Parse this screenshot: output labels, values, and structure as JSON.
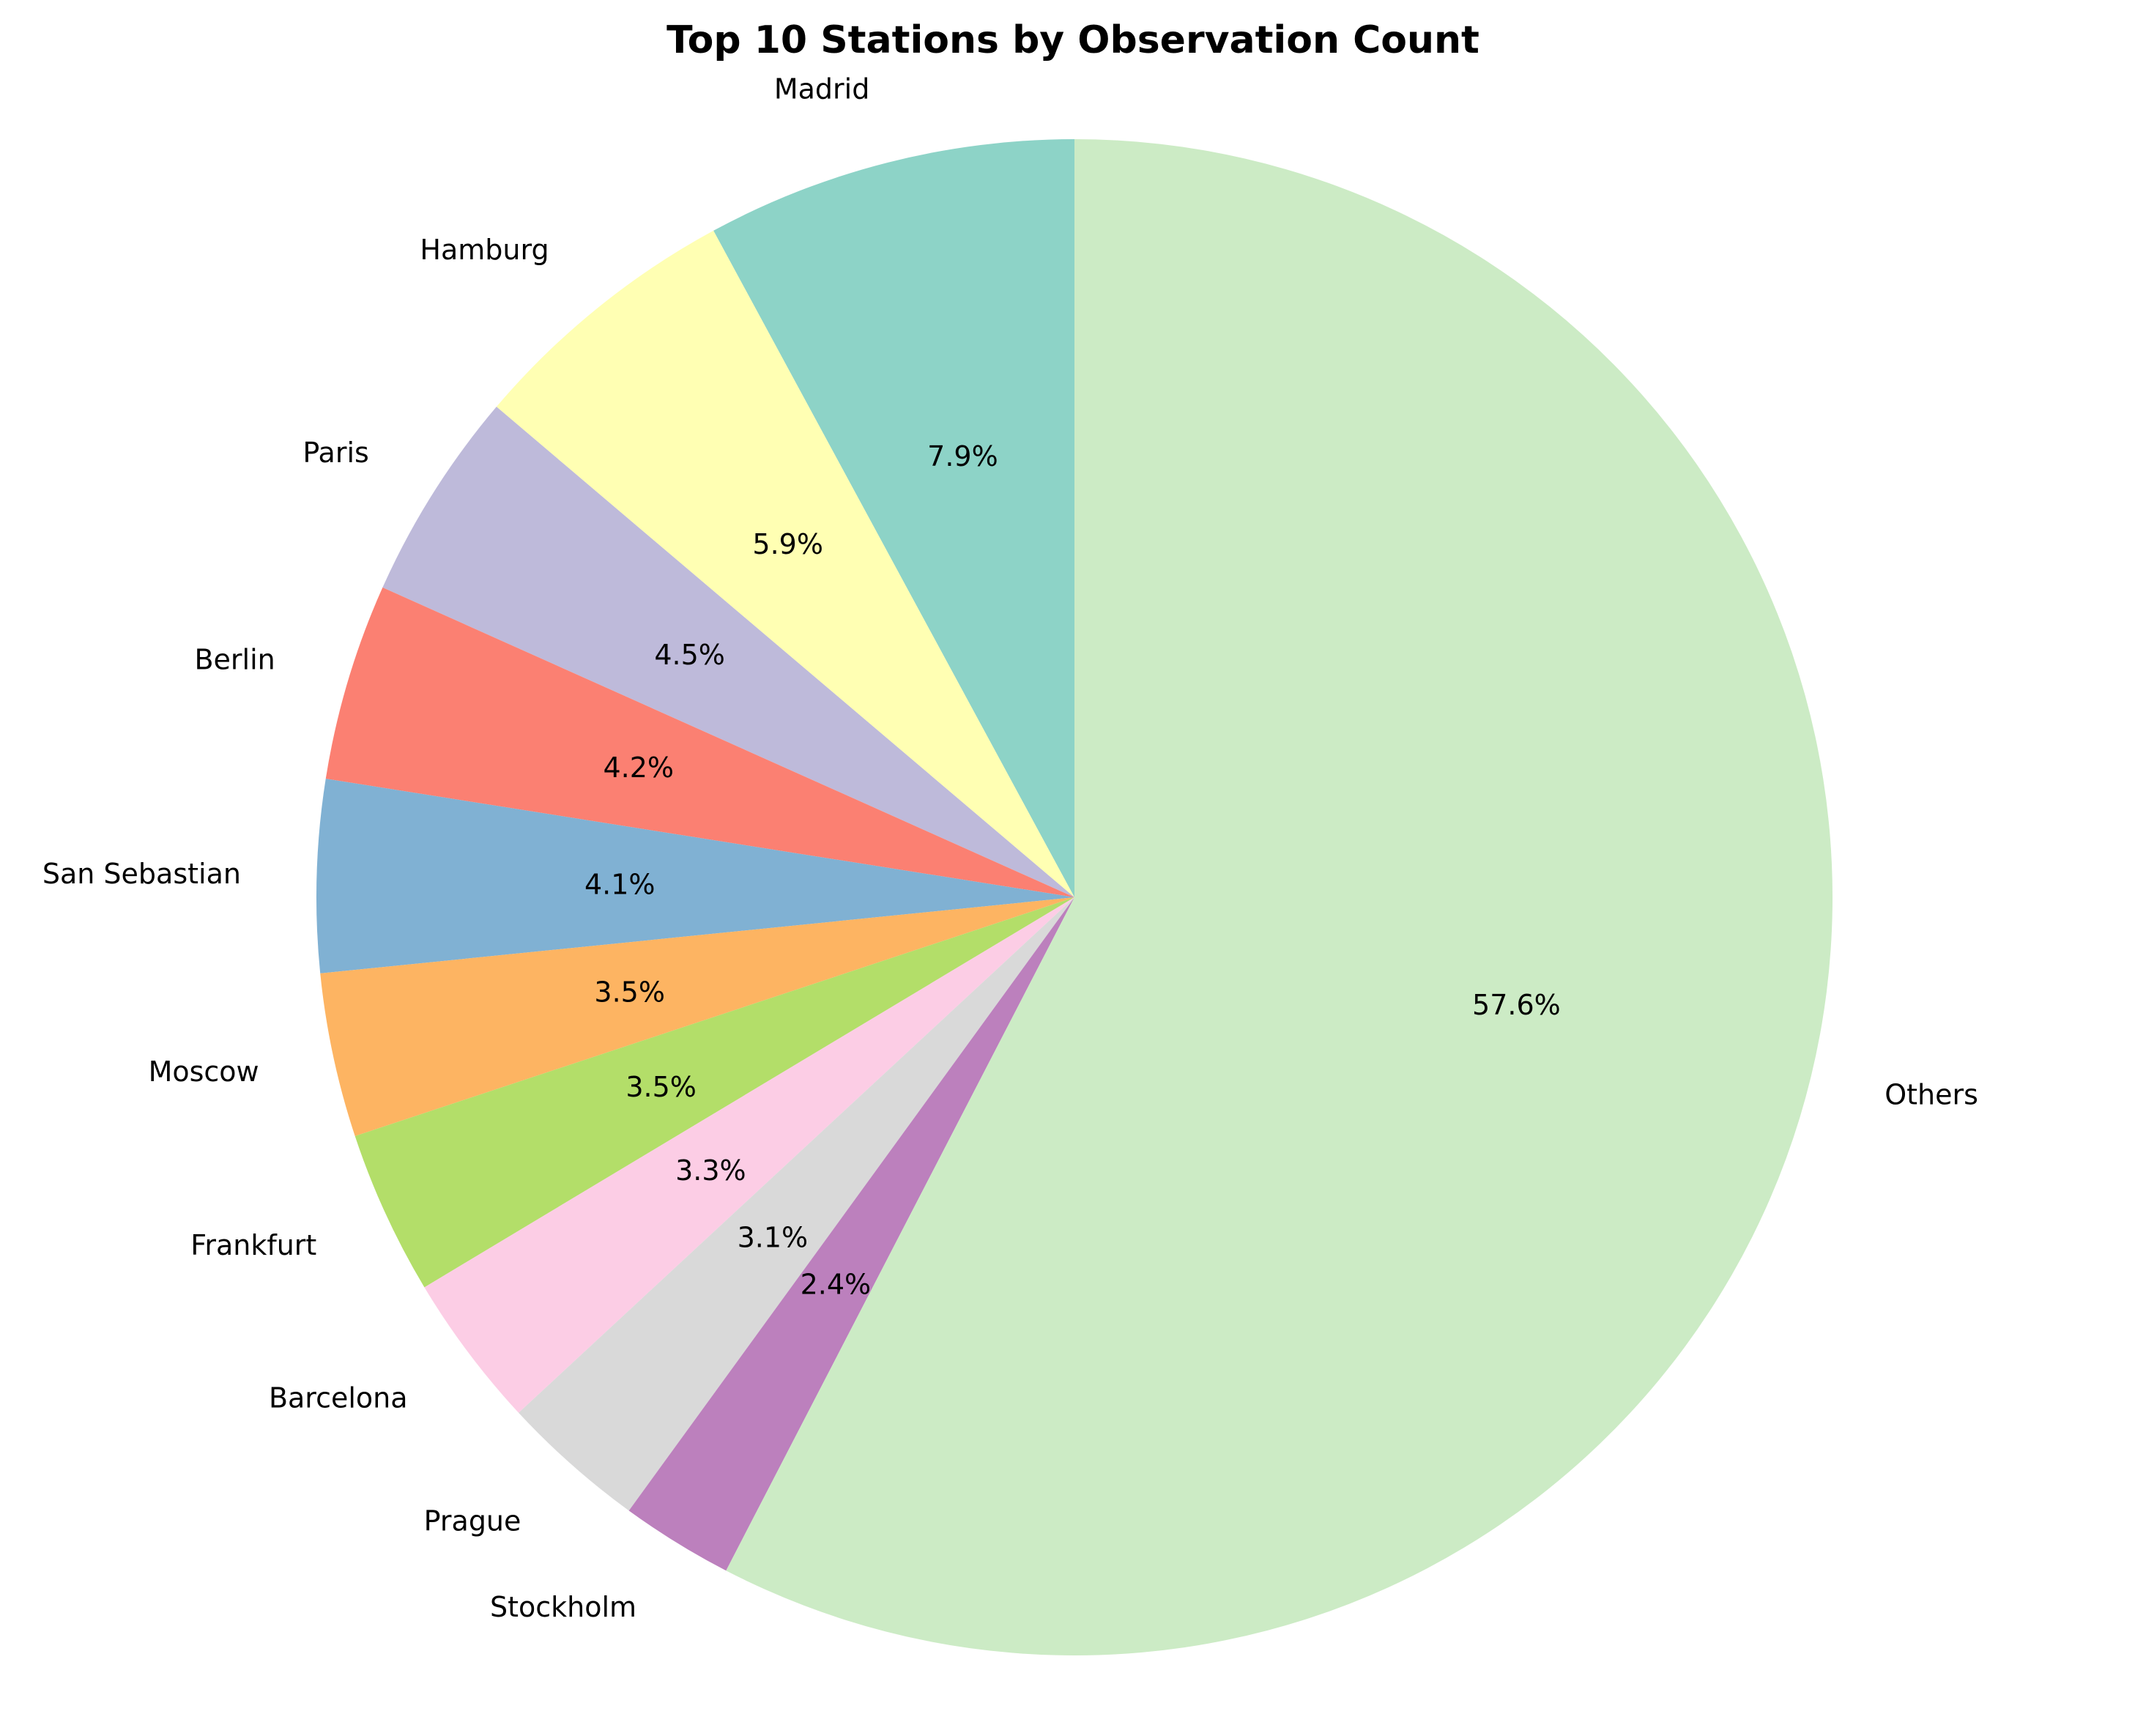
{
  "chart_data": {
    "type": "pie",
    "title": "Top 10 Stations by Observation Count",
    "start_angle": "top, counterclockwise",
    "slices": [
      {
        "label": "Madrid",
        "value": 7.9,
        "pct_label": "7.9%",
        "color": "#8dd3c7"
      },
      {
        "label": "Hamburg",
        "value": 5.9,
        "pct_label": "5.9%",
        "color": "#ffffb3"
      },
      {
        "label": "Paris",
        "value": 4.5,
        "pct_label": "4.5%",
        "color": "#bebada"
      },
      {
        "label": "Berlin",
        "value": 4.2,
        "pct_label": "4.2%",
        "color": "#fb8072"
      },
      {
        "label": "San Sebastian",
        "value": 4.1,
        "pct_label": "4.1%",
        "color": "#80b1d3"
      },
      {
        "label": "Moscow",
        "value": 3.5,
        "pct_label": "3.5%",
        "color": "#fdb462"
      },
      {
        "label": "Frankfurt",
        "value": 3.5,
        "pct_label": "3.5%",
        "color": "#b3de69"
      },
      {
        "label": "Barcelona",
        "value": 3.3,
        "pct_label": "3.3%",
        "color": "#fccde5"
      },
      {
        "label": "Prague",
        "value": 3.1,
        "pct_label": "3.1%",
        "color": "#d9d9d9"
      },
      {
        "label": "Stockholm",
        "value": 2.4,
        "pct_label": "2.4%",
        "color": "#bc80bd"
      },
      {
        "label": "Others",
        "value": 57.6,
        "pct_label": "57.6%",
        "color": "#ccebc5"
      }
    ]
  }
}
